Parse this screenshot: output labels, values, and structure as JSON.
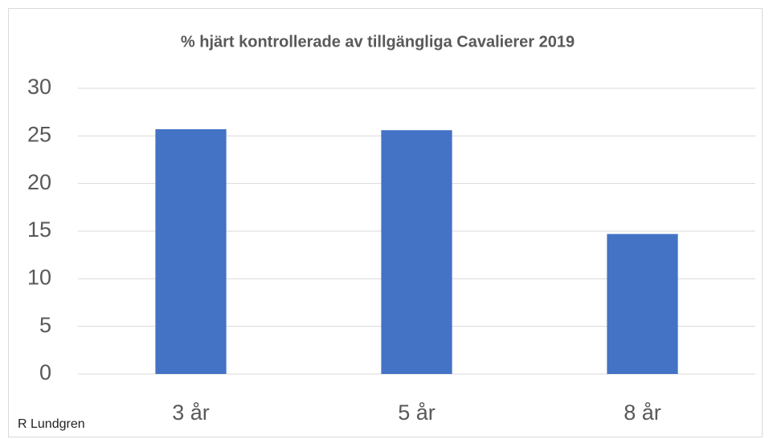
{
  "chart_data": {
    "type": "bar",
    "title": "% hjärt kontrollerade av tillgängliga Cavalierer 2019",
    "categories": [
      "3 år",
      "5 år",
      "8 år"
    ],
    "values": [
      25.7,
      25.6,
      14.7
    ],
    "color": "#4472c4",
    "ylim": [
      0,
      30
    ],
    "yticks": [
      0,
      5,
      10,
      15,
      20,
      25,
      30
    ],
    "grid": true,
    "annotation": "R Lundgren"
  }
}
